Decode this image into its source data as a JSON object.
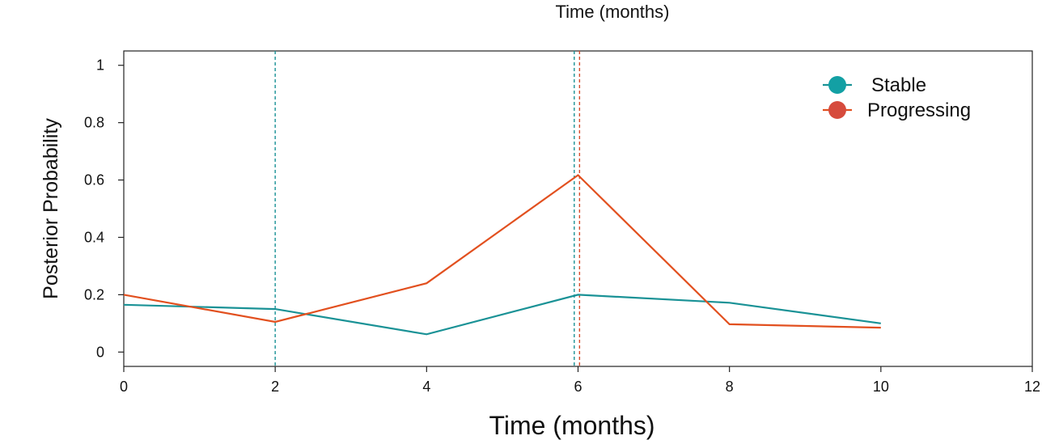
{
  "chart_data": {
    "type": "line",
    "title": "Time (months)",
    "xlabel": "Time (months)",
    "ylabel": "Posterior Probability",
    "xlim": [
      0,
      12
    ],
    "ylim": [
      -0.05,
      1.05
    ],
    "x_ticks": [
      0,
      2,
      4,
      6,
      8,
      10,
      12
    ],
    "x_tick_labels": [
      "0",
      "2",
      "4",
      "6",
      "8",
      "10",
      "12"
    ],
    "y_ticks": [
      0,
      0.2,
      0.4,
      0.6,
      0.8,
      1
    ],
    "y_tick_labels": [
      "0",
      "0.2",
      "0.4",
      "0.6",
      "0.8",
      "1"
    ],
    "grid": false,
    "legend_position": "top-right",
    "series": [
      {
        "name": "Stable",
        "color": "#1a9296",
        "x": [
          0,
          2,
          4,
          6,
          8,
          10
        ],
        "y": [
          0.165,
          0.15,
          0.062,
          0.2,
          0.172,
          0.1
        ]
      },
      {
        "name": "Progressing",
        "color": "#e2501f",
        "x": [
          0,
          2,
          4,
          6,
          8,
          10
        ],
        "y": [
          0.2,
          0.105,
          0.24,
          0.617,
          0.097,
          0.085
        ]
      }
    ],
    "reference_lines": [
      {
        "x": 2,
        "color": "#1a9296"
      },
      {
        "x": 5.95,
        "color": "#1a9296"
      },
      {
        "x": 6.02,
        "color": "#d64b2a"
      }
    ]
  }
}
